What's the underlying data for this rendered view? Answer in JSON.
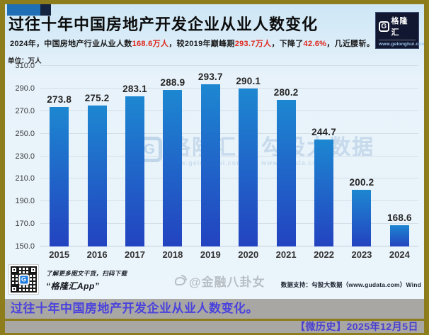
{
  "header": {
    "title": "过往十年中国房地产开发企业从业人数变化",
    "subtitle_segments": [
      {
        "text": "2024年，中国房地产行业从业人数",
        "highlight": false
      },
      {
        "text": "168.6万人",
        "highlight": true
      },
      {
        "text": "，较2019年巅峰期",
        "highlight": false
      },
      {
        "text": "293.7万人",
        "highlight": true
      },
      {
        "text": "，下降了",
        "highlight": false
      },
      {
        "text": "42.6%",
        "highlight": true
      },
      {
        "text": "，几近腰斩。",
        "highlight": false
      }
    ],
    "highlight_color": "#e0281c"
  },
  "logo": {
    "glyph": "G",
    "brand": "格隆汇",
    "url": "www.gelonghui.com"
  },
  "chart_data": {
    "type": "bar",
    "title": "过往十年中国房地产开发企业从业人数变化",
    "unit_label": "单位：万人",
    "categories": [
      "2015",
      "2016",
      "2017",
      "2018",
      "2019",
      "2020",
      "2021",
      "2022",
      "2023",
      "2024"
    ],
    "values": [
      273.8,
      275.2,
      283.1,
      288.9,
      293.7,
      290.1,
      280.2,
      244.7,
      200.2,
      168.6
    ],
    "ylim": [
      150,
      310
    ],
    "yticks": [
      150,
      170,
      190,
      210,
      230,
      250,
      270,
      290,
      310
    ],
    "ytick_format_decimals": 1,
    "grid": true,
    "xlabel": "",
    "ylabel": "万人",
    "bar_color_top": "#1d87d1",
    "bar_color_bottom": "#2343c0"
  },
  "watermark": {
    "glyph": "G",
    "brand": "格隆汇",
    "brand_url": "www.gelonghui.com",
    "partner": "勾股大数据",
    "partner_url": "www.gudata.com"
  },
  "footer": {
    "qr_caption1": "了解更多图文干货，扫码下载",
    "qr_caption2": "“格隆汇App”",
    "weibo_handle": "@金融八卦女",
    "data_support": "数据支持：勾股大数据（www.gudata.com）Wind"
  },
  "banner": {
    "caption": "过往十年中国房地产开发企业从业人数变化。",
    "source_date": "【微历史】2025年12月5日"
  },
  "colors": {
    "frame_border": "#8d7d1c",
    "card_background": "#e7f2fa",
    "banner_background": "#a9a7a4",
    "banner_text": "#4a42dd",
    "highlight_red": "#e0281c",
    "bar_top": "#1d87d1",
    "bar_bottom": "#2343c0",
    "logo_navy": "#111731"
  }
}
